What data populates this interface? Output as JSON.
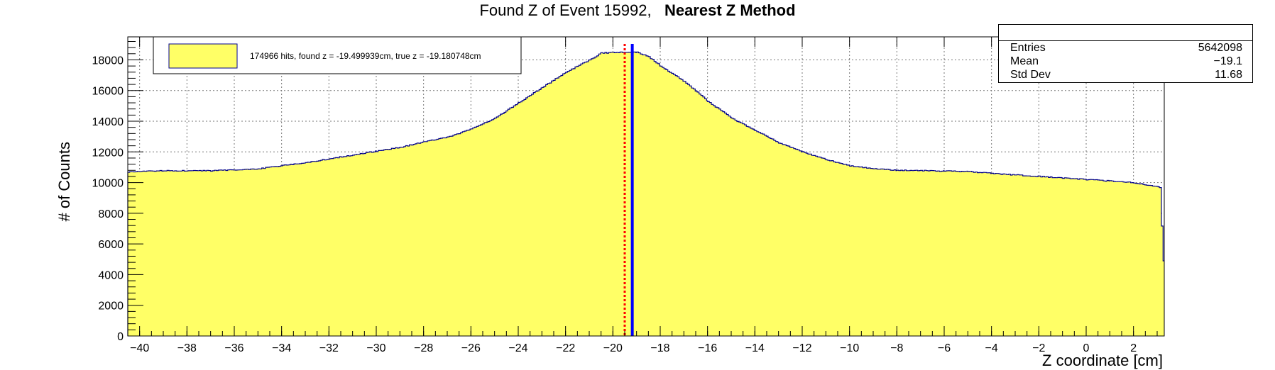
{
  "title": {
    "main": "Found Z of Event 15992,",
    "method": "Nearest Z Method"
  },
  "stats": {
    "rows": [
      {
        "label": "Entries",
        "value": "5642098"
      },
      {
        "label": "Mean",
        "value": "−19.1"
      },
      {
        "label": "Std Dev",
        "value": "11.68"
      }
    ]
  },
  "chart_data": {
    "type": "area",
    "xlabel": "Z coordinate [cm]",
    "ylabel": "# of Counts",
    "xlim": [
      -40.5,
      3.3
    ],
    "ylim": [
      0,
      19500
    ],
    "grid": true,
    "legend": {
      "position": "top-left",
      "label": "174966 hits, found z = -19.499939cm, true z = -19.180748cm"
    },
    "x_ticks": [
      -40,
      -38,
      -36,
      -34,
      -32,
      -30,
      -28,
      -26,
      -24,
      -22,
      -20,
      -18,
      -16,
      -14,
      -12,
      -10,
      -8,
      -6,
      -4,
      -2,
      0,
      2
    ],
    "x_tick_labels": [
      "−40",
      "−38",
      "−36",
      "−34",
      "−32",
      "−30",
      "−28",
      "−26",
      "−24",
      "−22",
      "−20",
      "−18",
      "−16",
      "−14",
      "−12",
      "−10",
      "−8",
      "−6",
      "−4",
      "−2",
      "0",
      "2"
    ],
    "y_ticks": [
      0,
      2000,
      4000,
      6000,
      8000,
      10000,
      12000,
      14000,
      16000,
      18000
    ],
    "y_tick_labels": [
      "0",
      "2000",
      "4000",
      "6000",
      "8000",
      "10000",
      "12000",
      "14000",
      "16000",
      "18000"
    ],
    "series": [
      {
        "color": "#ffff66",
        "edge_color": "#00008b",
        "points": [
          [
            -40.5,
            10700
          ],
          [
            -39,
            10780
          ],
          [
            -37,
            10770
          ],
          [
            -35,
            10900
          ],
          [
            -33,
            11300
          ],
          [
            -31,
            11800
          ],
          [
            -30,
            12050
          ],
          [
            -29,
            12300
          ],
          [
            -28,
            12650
          ],
          [
            -27,
            12950
          ],
          [
            -26,
            13500
          ],
          [
            -25,
            14200
          ],
          [
            -24,
            15200
          ],
          [
            -23,
            16200
          ],
          [
            -22,
            17200
          ],
          [
            -21,
            18000
          ],
          [
            -20.5,
            18450
          ],
          [
            -19.6,
            18500
          ],
          [
            -19,
            18500
          ],
          [
            -18.5,
            18200
          ],
          [
            -18,
            17600
          ],
          [
            -17,
            16600
          ],
          [
            -16,
            15300
          ],
          [
            -15,
            14200
          ],
          [
            -14,
            13400
          ],
          [
            -13,
            12600
          ],
          [
            -12,
            12000
          ],
          [
            -11,
            11500
          ],
          [
            -10,
            11100
          ],
          [
            -9,
            10900
          ],
          [
            -8,
            10800
          ],
          [
            -7,
            10780
          ],
          [
            -6,
            10750
          ],
          [
            -5,
            10720
          ],
          [
            -4,
            10600
          ],
          [
            -3,
            10500
          ],
          [
            -2,
            10400
          ],
          [
            -1,
            10300
          ],
          [
            0,
            10200
          ],
          [
            1,
            10100
          ],
          [
            2,
            10000
          ],
          [
            3.1,
            9700
          ],
          [
            3.25,
            4900
          ]
        ]
      }
    ],
    "vertical_lines": [
      {
        "name": "found z",
        "x": -19.499939,
        "color": "#ff0000",
        "style": "dotted"
      },
      {
        "name": "true z",
        "x": -19.180748,
        "color": "#0000ff",
        "style": "solid"
      }
    ]
  }
}
